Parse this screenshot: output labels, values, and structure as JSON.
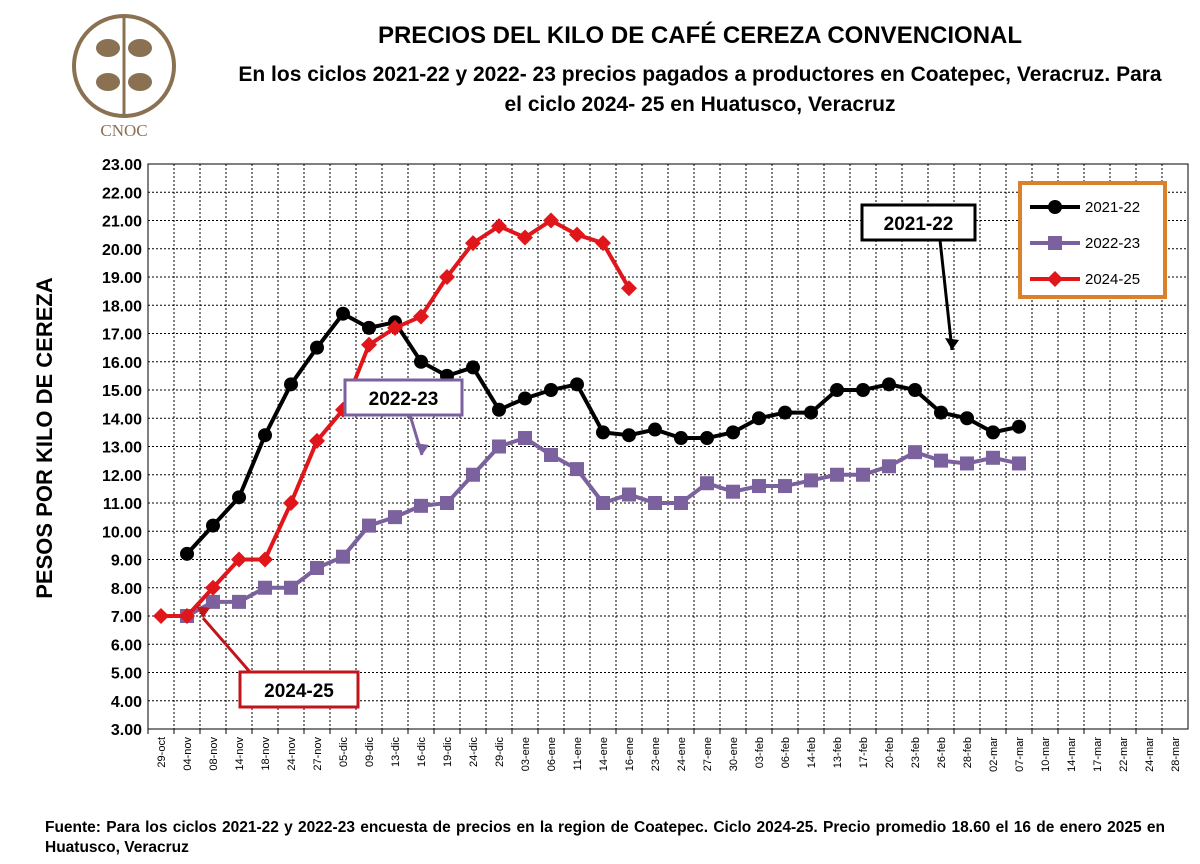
{
  "logo": {
    "text": "CNOC"
  },
  "title": "PRECIOS DEL KILO DE CAFÉ CEREZA CONVENCIONAL",
  "subtitle": "En los ciclos 2021-22 y 2022- 23 precios pagados a productores en Coatepec, Veracruz. Para el ciclo 2024- 25 en Huatusco, Veracruz",
  "footer": "Fuente: Para los ciclos 2021-22 y 2022-23 encuesta de precios en la region de Coatepec. Ciclo 2024-25. Precio promedio 18.60 el 16 de enero 2025 en Huatusco, Veracruz",
  "chart_data": {
    "type": "line",
    "title": "PRECIOS DEL KILO DE CAFÉ CEREZA CONVENCIONAL",
    "ylabel": "PESOS POR KILO DE CEREZA",
    "xlabel": "",
    "ylim": [
      3,
      23
    ],
    "yticks": [
      "3.00",
      "4.00",
      "5.00",
      "6.00",
      "7.00",
      "8.00",
      "9.00",
      "10.00",
      "11.00",
      "12.00",
      "13.00",
      "14.00",
      "15.00",
      "16.00",
      "17.00",
      "18.00",
      "19.00",
      "20.00",
      "21.00",
      "22.00",
      "23.00"
    ],
    "grid": true,
    "legend_position": "top-right",
    "categories": [
      "29-oct",
      "04-nov",
      "08-nov",
      "14-nov",
      "18-nov",
      "24-nov",
      "27-nov",
      "05-dic",
      "09-dic",
      "13-dic",
      "16-dic",
      "19-dic",
      "24-dic",
      "29-dic",
      "03-ene",
      "06-ene",
      "11-ene",
      "14-ene",
      "16-ene",
      "23-ene",
      "24-ene",
      "27-ene",
      "30-ene",
      "03-feb",
      "06-feb",
      "14-feb",
      "13-feb",
      "17-feb",
      "20-feb",
      "23-feb",
      "26-feb",
      "28-feb",
      "02-mar",
      "07-mar",
      "10-mar",
      "14-mar",
      "17-mar",
      "22-mar",
      "24-mar",
      "28-mar"
    ],
    "series": [
      {
        "name": "2021-22",
        "color": "#000000",
        "marker": "circle",
        "values": [
          null,
          9.2,
          10.2,
          11.2,
          13.4,
          15.2,
          16.5,
          17.7,
          17.2,
          17.4,
          16.0,
          15.5,
          15.8,
          14.3,
          14.7,
          15.0,
          15.2,
          13.5,
          13.4,
          13.6,
          13.3,
          13.3,
          13.5,
          14.0,
          14.2,
          14.2,
          15.0,
          15.0,
          15.2,
          15.0,
          14.2,
          14.0,
          13.5,
          13.7,
          null,
          null,
          null,
          null,
          null,
          null
        ]
      },
      {
        "name": "2022-23",
        "color": "#7b619e",
        "marker": "square",
        "values": [
          null,
          7.0,
          7.5,
          7.5,
          8.0,
          8.0,
          8.7,
          9.1,
          10.2,
          10.5,
          10.9,
          11.0,
          12.0,
          13.0,
          13.3,
          12.7,
          12.2,
          11.0,
          11.3,
          11.0,
          11.0,
          11.7,
          11.4,
          11.6,
          11.6,
          11.8,
          12.0,
          12.0,
          12.3,
          12.8,
          12.5,
          12.4,
          12.6,
          12.4,
          null,
          null,
          null,
          null,
          null,
          null
        ]
      },
      {
        "name": "2024-25",
        "color": "#e0161b",
        "marker": "diamond",
        "values": [
          7.0,
          7.0,
          8.0,
          9.0,
          9.0,
          11.0,
          13.2,
          14.3,
          16.6,
          17.2,
          17.6,
          19.0,
          20.2,
          20.8,
          20.4,
          21.0,
          20.5,
          20.2,
          18.6,
          null,
          null,
          null,
          null,
          null,
          null,
          null,
          null,
          null,
          null,
          null,
          null,
          null,
          null,
          null,
          null,
          null,
          null,
          null,
          null,
          null
        ]
      }
    ],
    "annotations": [
      {
        "text": "2021-22",
        "color": "#000000"
      },
      {
        "text": "2022-23",
        "color": "#7b619e"
      },
      {
        "text": "2024-25",
        "color": "#c0161b"
      }
    ],
    "legend_border_color": "#d9822b"
  }
}
